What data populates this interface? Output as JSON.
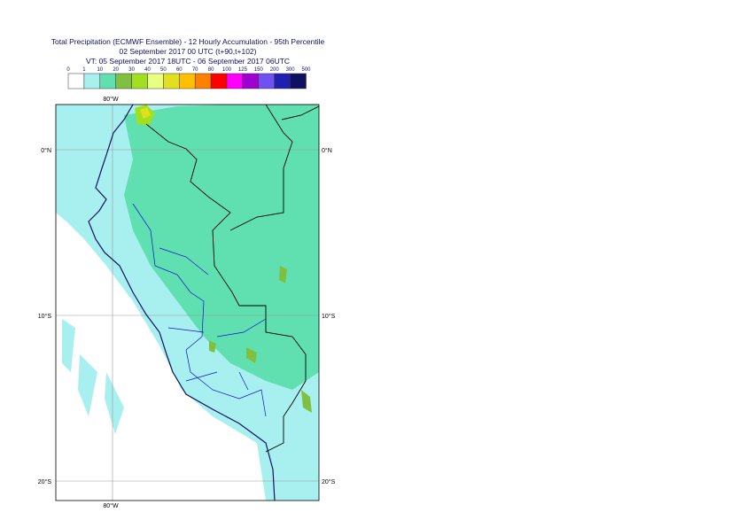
{
  "header": {
    "title_lines": [
      "Total Precipitation (ECMWF Ensemble) - 12 Hourly Accumulation - 95th Percentile",
      "02 September 2017 00 UTC (t+90,t+102)",
      "VT: 05 September 2017 18UTC - 06 September 2017 06UTC"
    ]
  },
  "legend": {
    "levels": [
      0,
      1,
      10,
      20,
      30,
      40,
      50,
      60,
      70,
      80,
      100,
      125,
      150,
      200,
      300,
      500
    ],
    "colors": [
      "#ffffff",
      "#a8f0f0",
      "#60e0b0",
      "#80c040",
      "#a0e020",
      "#e8ff80",
      "#e0e020",
      "#ffc000",
      "#ff8000",
      "#ff0000",
      "#ff00ff",
      "#a000d0",
      "#7050f0",
      "#2020b0",
      "#101060"
    ]
  },
  "map": {
    "lon_labels": [
      "80°W"
    ],
    "lat_labels": [
      "0°N",
      "10°S",
      "20°S"
    ]
  }
}
